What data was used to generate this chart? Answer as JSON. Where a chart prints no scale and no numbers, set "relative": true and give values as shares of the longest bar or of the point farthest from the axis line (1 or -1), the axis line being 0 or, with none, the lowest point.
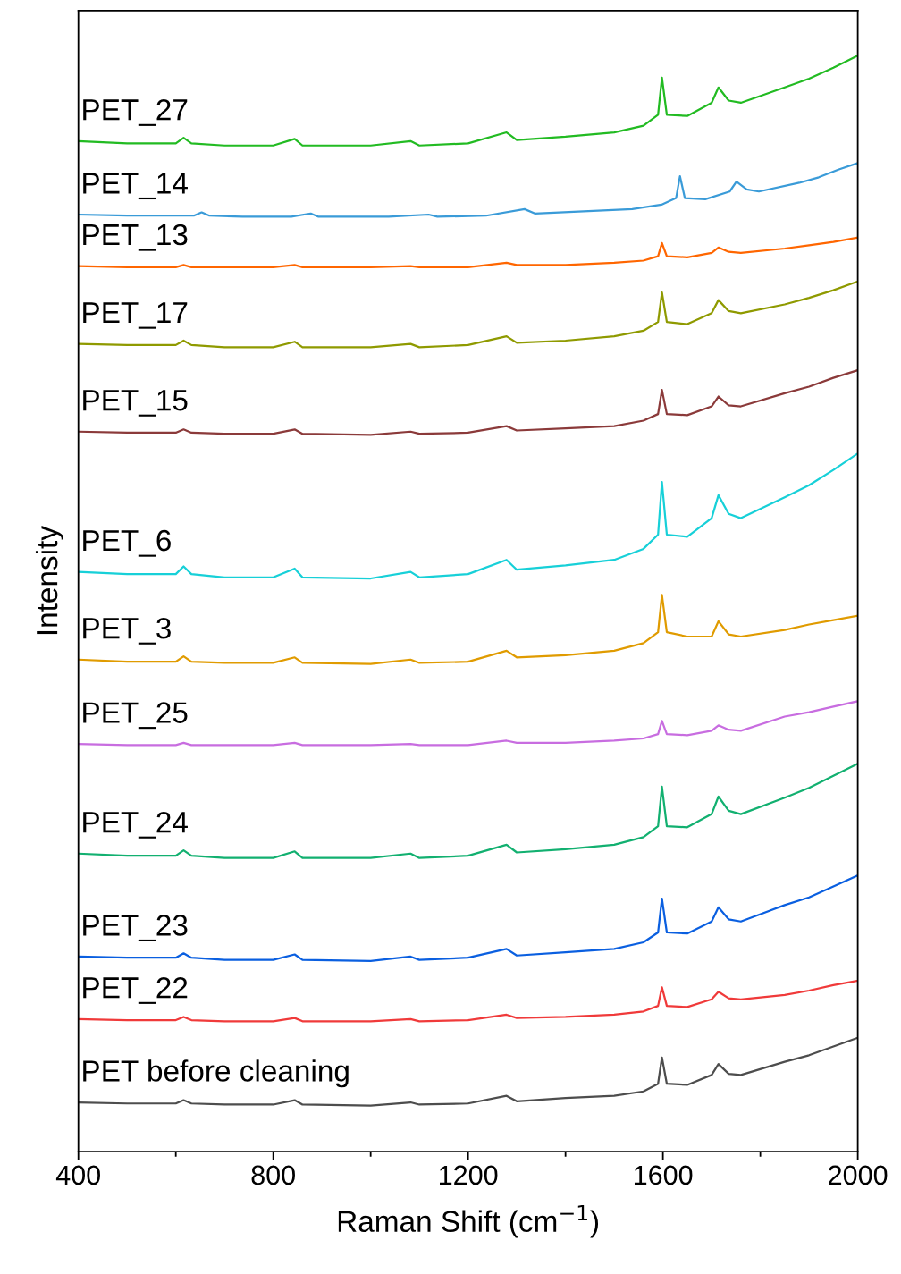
{
  "chart_data": {
    "type": "line",
    "relative": true,
    "xlabel": "Raman Shift (cm$^{−1}$)",
    "ylabel": "Intensity",
    "xlim": [
      400,
      2000
    ],
    "xticks": [
      400,
      {
        "value": 600,
        "label": null
      },
      800,
      {
        "value": 1000,
        "label": null
      },
      1200,
      {
        "value": 1400,
        "label": null
      },
      1600,
      {
        "value": 1800,
        "label": null
      },
      2000
    ],
    "tick_labels": "x",
    "grid": false,
    "line_style": "solid",
    "marker": "none",
    "x": [
      400,
      500,
      600,
      616,
      632,
      700,
      800,
      844,
      860,
      1000,
      1082,
      1100,
      1200,
      1279,
      1300,
      1400,
      1500,
      1560,
      1590,
      1598,
      1608,
      1650,
      1700,
      1714,
      1735,
      1760,
      1850,
      1900,
      1950,
      2000
    ],
    "series": [
      {
        "name": "PET_27",
        "color": "#22bb22",
        "values": [
          0.922,
          0.92,
          0.92,
          0.925,
          0.92,
          0.918,
          0.918,
          0.924,
          0.918,
          0.918,
          0.922,
          0.918,
          0.92,
          0.93,
          0.923,
          0.926,
          0.93,
          0.936,
          0.946,
          0.98,
          0.946,
          0.945,
          0.957,
          0.971,
          0.959,
          0.957,
          0.971,
          0.979,
          0.989,
          1.0
        ]
      },
      {
        "name": "PET_14",
        "color": "#3a9bd8",
        "x": [
          400,
          500,
          637,
          653,
          669,
          737,
          837,
          877,
          893,
          1037,
          1119,
          1137,
          1237,
          1316,
          1337,
          1437,
          1537,
          1597,
          1627,
          1635,
          1645,
          1687,
          1737,
          1751,
          1772,
          1797,
          1880,
          1920,
          1960,
          2000
        ],
        "values": [
          0.855,
          0.854,
          0.854,
          0.857,
          0.854,
          0.853,
          0.853,
          0.856,
          0.853,
          0.853,
          0.855,
          0.853,
          0.854,
          0.86,
          0.856,
          0.858,
          0.86,
          0.864,
          0.87,
          0.89,
          0.87,
          0.869,
          0.876,
          0.885,
          0.878,
          0.876,
          0.884,
          0.889,
          0.896,
          0.902
        ]
      },
      {
        "name": "PET_13",
        "color": "#ff6600",
        "values": [
          0.808,
          0.807,
          0.807,
          0.809,
          0.807,
          0.807,
          0.807,
          0.809,
          0.807,
          0.807,
          0.808,
          0.807,
          0.807,
          0.811,
          0.809,
          0.809,
          0.811,
          0.813,
          0.817,
          0.829,
          0.817,
          0.816,
          0.82,
          0.825,
          0.821,
          0.82,
          0.824,
          0.827,
          0.83,
          0.834
        ]
      },
      {
        "name": "PET_17",
        "color": "#8f9a00",
        "values": [
          0.737,
          0.736,
          0.736,
          0.74,
          0.736,
          0.734,
          0.734,
          0.739,
          0.734,
          0.734,
          0.737,
          0.734,
          0.736,
          0.744,
          0.738,
          0.74,
          0.744,
          0.749,
          0.757,
          0.784,
          0.757,
          0.755,
          0.765,
          0.777,
          0.767,
          0.765,
          0.773,
          0.779,
          0.786,
          0.794
        ]
      },
      {
        "name": "PET_15",
        "color": "#8b3a3a",
        "values": [
          0.657,
          0.656,
          0.656,
          0.659,
          0.656,
          0.655,
          0.655,
          0.659,
          0.655,
          0.654,
          0.657,
          0.655,
          0.656,
          0.662,
          0.658,
          0.66,
          0.662,
          0.667,
          0.673,
          0.695,
          0.673,
          0.672,
          0.68,
          0.689,
          0.681,
          0.68,
          0.692,
          0.698,
          0.706,
          0.713
        ]
      },
      {
        "name": "PET_6",
        "color": "#17d0d8",
        "values": [
          0.529,
          0.527,
          0.527,
          0.534,
          0.527,
          0.524,
          0.524,
          0.532,
          0.524,
          0.523,
          0.529,
          0.524,
          0.527,
          0.54,
          0.531,
          0.535,
          0.54,
          0.55,
          0.563,
          0.611,
          0.563,
          0.561,
          0.578,
          0.599,
          0.582,
          0.578,
          0.597,
          0.608,
          0.622,
          0.637
        ]
      },
      {
        "name": "PET_3",
        "color": "#e09b00",
        "values": [
          0.449,
          0.447,
          0.447,
          0.452,
          0.447,
          0.446,
          0.446,
          0.451,
          0.446,
          0.445,
          0.449,
          0.446,
          0.447,
          0.457,
          0.451,
          0.453,
          0.457,
          0.464,
          0.474,
          0.508,
          0.474,
          0.47,
          0.47,
          0.484,
          0.472,
          0.47,
          0.476,
          0.481,
          0.485,
          0.489
        ]
      },
      {
        "name": "PET_25",
        "color": "#c86de0",
        "values": [
          0.372,
          0.371,
          0.371,
          0.373,
          0.371,
          0.371,
          0.371,
          0.373,
          0.371,
          0.371,
          0.372,
          0.371,
          0.371,
          0.375,
          0.373,
          0.373,
          0.375,
          0.377,
          0.381,
          0.393,
          0.381,
          0.38,
          0.384,
          0.389,
          0.385,
          0.384,
          0.397,
          0.401,
          0.406,
          0.411
        ]
      },
      {
        "name": "PET_24",
        "color": "#12b070",
        "values": [
          0.272,
          0.27,
          0.27,
          0.275,
          0.27,
          0.268,
          0.268,
          0.274,
          0.268,
          0.268,
          0.272,
          0.268,
          0.27,
          0.28,
          0.273,
          0.276,
          0.28,
          0.287,
          0.297,
          0.333,
          0.297,
          0.296,
          0.308,
          0.324,
          0.311,
          0.308,
          0.323,
          0.332,
          0.343,
          0.354
        ]
      },
      {
        "name": "PET_23",
        "color": "#0a5fe0",
        "values": [
          0.178,
          0.177,
          0.177,
          0.181,
          0.177,
          0.175,
          0.175,
          0.18,
          0.175,
          0.174,
          0.178,
          0.175,
          0.177,
          0.185,
          0.179,
          0.182,
          0.185,
          0.191,
          0.2,
          0.231,
          0.2,
          0.199,
          0.21,
          0.223,
          0.212,
          0.21,
          0.225,
          0.232,
          0.242,
          0.252
        ]
      },
      {
        "name": "PET_22",
        "color": "#f03a3a",
        "values": [
          0.121,
          0.12,
          0.12,
          0.123,
          0.12,
          0.119,
          0.119,
          0.122,
          0.119,
          0.119,
          0.121,
          0.119,
          0.12,
          0.125,
          0.122,
          0.123,
          0.125,
          0.128,
          0.133,
          0.15,
          0.133,
          0.132,
          0.139,
          0.146,
          0.14,
          0.139,
          0.143,
          0.147,
          0.152,
          0.156
        ]
      },
      {
        "name": "PET before cleaning",
        "color": "#4d4d4d",
        "values": [
          0.045,
          0.044,
          0.044,
          0.047,
          0.044,
          0.043,
          0.043,
          0.047,
          0.043,
          0.042,
          0.045,
          0.043,
          0.044,
          0.051,
          0.046,
          0.049,
          0.051,
          0.055,
          0.062,
          0.086,
          0.062,
          0.061,
          0.07,
          0.08,
          0.071,
          0.07,
          0.082,
          0.088,
          0.096,
          0.104
        ]
      }
    ]
  }
}
